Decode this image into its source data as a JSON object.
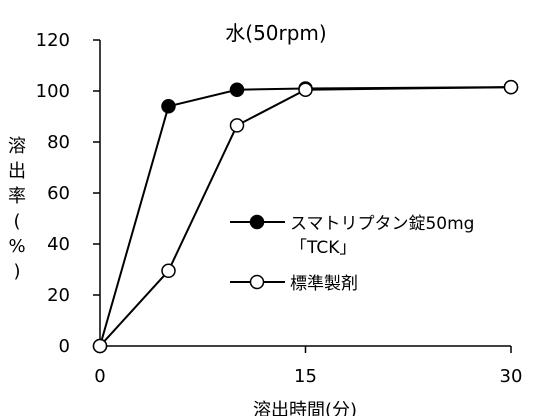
{
  "chart_data": {
    "type": "line",
    "title": "水(50rpm)",
    "xlabel": "溶出時間(分)",
    "ylabel": [
      "溶",
      "出",
      "率",
      "(",
      "%",
      ")"
    ],
    "x": [
      0,
      5,
      10,
      15,
      30
    ],
    "xlim": [
      0,
      30
    ],
    "ylim": [
      0,
      120
    ],
    "xticks": [
      "0",
      "15",
      "30"
    ],
    "xtick_values": [
      0,
      15,
      30
    ],
    "yticks": [
      "0",
      "20",
      "40",
      "60",
      "80",
      "100",
      "120"
    ],
    "ytick_values": [
      0,
      20,
      40,
      60,
      80,
      100,
      120
    ],
    "grid": false,
    "legend_position": "center-right",
    "series": [
      {
        "name": "スマトリプタン錠50mg「TCK」",
        "name_lines": [
          "スマトリプタン錠50mg",
          "「TCK」"
        ],
        "marker": "filled-circle",
        "color": "#000000",
        "values": [
          0,
          94,
          100.5,
          101,
          101.5
        ]
      },
      {
        "name": "標準製剤",
        "name_lines": [
          "標準製剤"
        ],
        "marker": "open-circle",
        "color": "#000000",
        "values": [
          0,
          29.5,
          86.5,
          100.5,
          101.5
        ]
      }
    ]
  }
}
